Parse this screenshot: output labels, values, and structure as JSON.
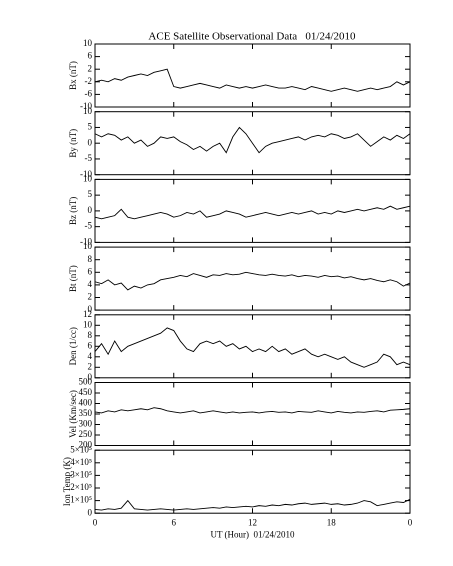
{
  "chart_data": [
    {
      "type": "line",
      "title": "ACE Satellite Observational Data   01/24/2010",
      "ylabel": "Bx (nT)",
      "ylim": [
        -10,
        10
      ],
      "yticks": [
        -10,
        -6,
        -2,
        2,
        6,
        10
      ],
      "x": [
        0,
        0.5,
        1,
        1.5,
        2,
        2.5,
        3,
        3.5,
        4,
        4.5,
        5,
        5.5,
        6,
        6.5,
        7,
        7.5,
        8,
        8.5,
        9,
        9.5,
        10,
        10.5,
        11,
        11.5,
        12,
        12.5,
        13,
        13.5,
        14,
        14.5,
        15,
        15.5,
        16,
        16.5,
        17,
        17.5,
        18,
        18.5,
        19,
        19.5,
        20,
        20.5,
        21,
        21.5,
        22,
        22.5,
        23,
        23.5,
        24
      ],
      "series": [
        {
          "color": "#000000",
          "values": [
            -2,
            -1.5,
            -2,
            -1,
            -1.5,
            -0.5,
            0,
            0.5,
            0,
            1,
            1.5,
            2,
            -3.5,
            -4,
            -3.5,
            -3,
            -2.5,
            -3,
            -3.5,
            -4,
            -3,
            -3.5,
            -4,
            -3.5,
            -4,
            -3.5,
            -3,
            -3.5,
            -4,
            -4,
            -3.5,
            -4,
            -4.5,
            -3.5,
            -4,
            -4.5,
            -5,
            -4.5,
            -4,
            -4.5,
            -5,
            -4.5,
            -4,
            -4.5,
            -4,
            -3.5,
            -2,
            -3,
            -2
          ]
        }
      ]
    },
    {
      "type": "line",
      "ylabel": "By (nT)",
      "ylim": [
        -10,
        10
      ],
      "yticks": [
        -10,
        -5,
        0,
        5,
        10
      ],
      "x": [
        0,
        0.5,
        1,
        1.5,
        2,
        2.5,
        3,
        3.5,
        4,
        4.5,
        5,
        5.5,
        6,
        6.5,
        7,
        7.5,
        8,
        8.5,
        9,
        9.5,
        10,
        10.5,
        11,
        11.5,
        12,
        12.5,
        13,
        13.5,
        14,
        14.5,
        15,
        15.5,
        16,
        16.5,
        17,
        17.5,
        18,
        18.5,
        19,
        19.5,
        20,
        20.5,
        21,
        21.5,
        22,
        22.5,
        23,
        23.5,
        24
      ],
      "series": [
        {
          "color": "#000000",
          "values": [
            3,
            2,
            3,
            2.5,
            1,
            2,
            0,
            1,
            -1,
            0,
            2,
            1.5,
            2,
            0.5,
            -0.5,
            -2,
            -1,
            -2.5,
            -1,
            0,
            -3,
            2,
            5,
            3,
            0,
            -3,
            -1,
            0,
            0.5,
            1,
            1.5,
            2,
            1,
            2,
            2.5,
            2,
            3,
            2.5,
            1.5,
            2,
            3,
            1,
            -1,
            0.5,
            2,
            1,
            2.5,
            1.5,
            3
          ]
        }
      ]
    },
    {
      "type": "line",
      "ylabel": "Bz (nT)",
      "ylim": [
        -10,
        10
      ],
      "yticks": [
        -10,
        -5,
        0,
        5,
        10
      ],
      "x": [
        0,
        0.5,
        1,
        1.5,
        2,
        2.5,
        3,
        3.5,
        4,
        4.5,
        5,
        5.5,
        6,
        6.5,
        7,
        7.5,
        8,
        8.5,
        9,
        9.5,
        10,
        10.5,
        11,
        11.5,
        12,
        12.5,
        13,
        13.5,
        14,
        14.5,
        15,
        15.5,
        16,
        16.5,
        17,
        17.5,
        18,
        18.5,
        19,
        19.5,
        20,
        20.5,
        21,
        21.5,
        22,
        22.5,
        23,
        23.5,
        24
      ],
      "series": [
        {
          "color": "#000000",
          "values": [
            -2,
            -2.5,
            -2,
            -1.5,
            0.5,
            -2,
            -2.5,
            -2,
            -1.5,
            -1,
            -0.5,
            -1,
            -2,
            -1.5,
            -0.5,
            -1,
            0,
            -2,
            -1.5,
            -1,
            0,
            -0.5,
            -1,
            -2,
            -1.5,
            -1,
            -0.5,
            -1,
            -1.5,
            -1,
            -0.5,
            -1,
            -0.5,
            0,
            -1,
            -0.5,
            -1,
            0,
            -0.5,
            0,
            0.5,
            0,
            0.5,
            1,
            0.5,
            1.5,
            0.5,
            1,
            1.5
          ]
        }
      ]
    },
    {
      "type": "line",
      "ylabel": "Bt (nT)",
      "ylim": [
        0,
        10
      ],
      "yticks": [
        0,
        2,
        4,
        6,
        8,
        10
      ],
      "x": [
        0,
        0.5,
        1,
        1.5,
        2,
        2.5,
        3,
        3.5,
        4,
        4.5,
        5,
        5.5,
        6,
        6.5,
        7,
        7.5,
        8,
        8.5,
        9,
        9.5,
        10,
        10.5,
        11,
        11.5,
        12,
        12.5,
        13,
        13.5,
        14,
        14.5,
        15,
        15.5,
        16,
        16.5,
        17,
        17.5,
        18,
        18.5,
        19,
        19.5,
        20,
        20.5,
        21,
        21.5,
        22,
        22.5,
        23,
        23.5,
        24
      ],
      "series": [
        {
          "color": "#000000",
          "values": [
            4.5,
            4.2,
            4.8,
            4,
            4.3,
            3.2,
            3.8,
            3.5,
            4,
            4.2,
            4.8,
            5,
            5.2,
            5.5,
            5.3,
            5.8,
            5.5,
            5.2,
            5.6,
            5.5,
            5.8,
            5.6,
            5.7,
            6,
            5.8,
            5.6,
            5.5,
            5.7,
            5.5,
            5.4,
            5.6,
            5.3,
            5.5,
            5.4,
            5.2,
            5.5,
            5.3,
            5.4,
            5.1,
            5.3,
            5,
            4.8,
            5,
            4.7,
            4.5,
            4.8,
            4.5,
            3.8,
            4.3
          ]
        }
      ]
    },
    {
      "type": "line",
      "ylabel": "Den (1/cc)",
      "ylim": [
        0,
        12
      ],
      "yticks": [
        0,
        2,
        4,
        6,
        8,
        10,
        12
      ],
      "x": [
        0,
        0.5,
        1,
        1.5,
        2,
        2.5,
        3,
        3.5,
        4,
        4.5,
        5,
        5.5,
        6,
        6.5,
        7,
        7.5,
        8,
        8.5,
        9,
        9.5,
        10,
        10.5,
        11,
        11.5,
        12,
        12.5,
        13,
        13.5,
        14,
        14.5,
        15,
        15.5,
        16,
        16.5,
        17,
        17.5,
        18,
        18.5,
        19,
        19.5,
        20,
        20.5,
        21,
        21.5,
        22,
        22.5,
        23,
        23.5,
        24
      ],
      "series": [
        {
          "color": "#000000",
          "values": [
            5,
            6.5,
            4.5,
            7,
            5,
            6,
            6.5,
            7,
            7.5,
            8,
            8.5,
            9.5,
            9,
            7,
            5.5,
            5,
            6.5,
            7,
            6.5,
            7,
            6,
            6.5,
            5.5,
            6,
            5,
            5.5,
            5,
            6,
            5,
            5.5,
            4.5,
            5,
            5.5,
            4.5,
            4,
            4.5,
            4,
            3.5,
            4,
            3,
            2.5,
            2,
            2.5,
            3,
            4.5,
            4,
            2.5,
            3,
            2.5
          ]
        }
      ]
    },
    {
      "type": "line",
      "ylabel": "Vel (Km/sec)",
      "ylim": [
        200,
        500
      ],
      "yticks": [
        200,
        250,
        300,
        350,
        400,
        450,
        500
      ],
      "x": [
        0,
        0.5,
        1,
        1.5,
        2,
        2.5,
        3,
        3.5,
        4,
        4.5,
        5,
        5.5,
        6,
        6.5,
        7,
        7.5,
        8,
        8.5,
        9,
        9.5,
        10,
        10.5,
        11,
        11.5,
        12,
        12.5,
        13,
        13.5,
        14,
        14.5,
        15,
        15.5,
        16,
        16.5,
        17,
        17.5,
        18,
        18.5,
        19,
        19.5,
        20,
        20.5,
        21,
        21.5,
        22,
        22.5,
        23,
        23.5,
        24
      ],
      "series": [
        {
          "color": "#000000",
          "values": [
            360,
            355,
            365,
            360,
            370,
            365,
            370,
            375,
            370,
            380,
            375,
            365,
            360,
            355,
            360,
            365,
            355,
            360,
            365,
            360,
            355,
            360,
            355,
            358,
            360,
            355,
            360,
            362,
            358,
            360,
            355,
            362,
            360,
            358,
            365,
            360,
            355,
            362,
            358,
            355,
            360,
            358,
            362,
            365,
            360,
            368,
            370,
            372,
            375
          ]
        }
      ]
    },
    {
      "type": "line",
      "ylabel": "Ion Temp (K)",
      "xlabel": "UT (Hour)  01/24/2010",
      "xlim": [
        0,
        24
      ],
      "xticks": [
        0,
        6,
        12,
        18,
        {
          "value": 24,
          "label": "0"
        }
      ],
      "ylim": [
        0,
        500000
      ],
      "yticks": [
        0,
        {
          "value": 100000,
          "label": "1×10⁵"
        },
        {
          "value": 200000,
          "label": "2×10⁵"
        },
        {
          "value": 300000,
          "label": "3×10⁵"
        },
        {
          "value": 400000,
          "label": "4×10⁵"
        },
        {
          "value": 500000,
          "label": "5×10⁵"
        }
      ],
      "x": [
        0,
        0.5,
        1,
        1.5,
        2,
        2.5,
        3,
        3.5,
        4,
        4.5,
        5,
        5.5,
        6,
        6.5,
        7,
        7.5,
        8,
        8.5,
        9,
        9.5,
        10,
        10.5,
        11,
        11.5,
        12,
        12.5,
        13,
        13.5,
        14,
        14.5,
        15,
        15.5,
        16,
        16.5,
        17,
        17.5,
        18,
        18.5,
        19,
        19.5,
        20,
        20.5,
        21,
        21.5,
        22,
        22.5,
        23,
        23.5,
        24
      ],
      "series": [
        {
          "color": "#000000",
          "values": [
            30000,
            25000,
            35000,
            30000,
            40000,
            100000,
            35000,
            30000,
            25000,
            30000,
            35000,
            30000,
            25000,
            30000,
            35000,
            30000,
            35000,
            40000,
            45000,
            40000,
            50000,
            45000,
            50000,
            55000,
            50000,
            60000,
            55000,
            65000,
            60000,
            70000,
            65000,
            75000,
            80000,
            70000,
            75000,
            80000,
            70000,
            75000,
            65000,
            70000,
            80000,
            100000,
            90000,
            60000,
            70000,
            80000,
            90000,
            85000,
            110000
          ]
        }
      ]
    }
  ]
}
